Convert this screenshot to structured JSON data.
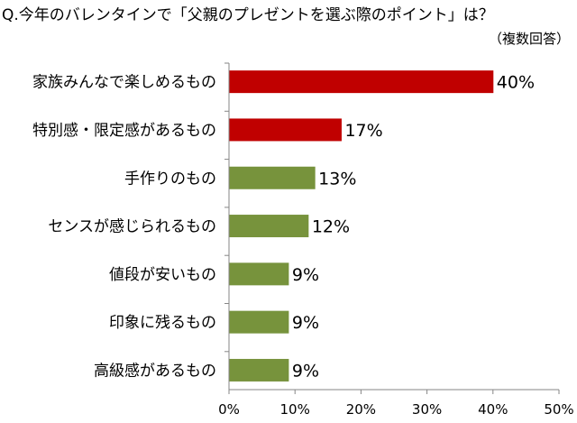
{
  "chart_data": {
    "type": "bar",
    "orientation": "horizontal",
    "title": "Q.今年のバレンタインで「父親のプレゼントを選ぶ際のポイント」は？",
    "subtitle": "（複数回答）",
    "categories": [
      "家族みんなで楽しめるもの",
      "特別感・限定感があるもの",
      "手作りのもの",
      "センスが感じられるもの",
      "値段が安いもの",
      "印象に残るもの",
      "高級感があるもの"
    ],
    "values": [
      40,
      17,
      13,
      12,
      9,
      9,
      9
    ],
    "value_labels": [
      "40%",
      "17%",
      "13%",
      "12%",
      "9%",
      "9%",
      "9%"
    ],
    "bar_colors": [
      "#c00000",
      "#c00000",
      "#77933c",
      "#77933c",
      "#77933c",
      "#77933c",
      "#77933c"
    ],
    "xlim": [
      0,
      50
    ],
    "x_ticks": [
      0,
      10,
      20,
      30,
      40,
      50
    ],
    "x_tick_labels": [
      "0%",
      "10%",
      "20%",
      "30%",
      "40%",
      "50%"
    ],
    "grid": false,
    "legend": "none"
  }
}
